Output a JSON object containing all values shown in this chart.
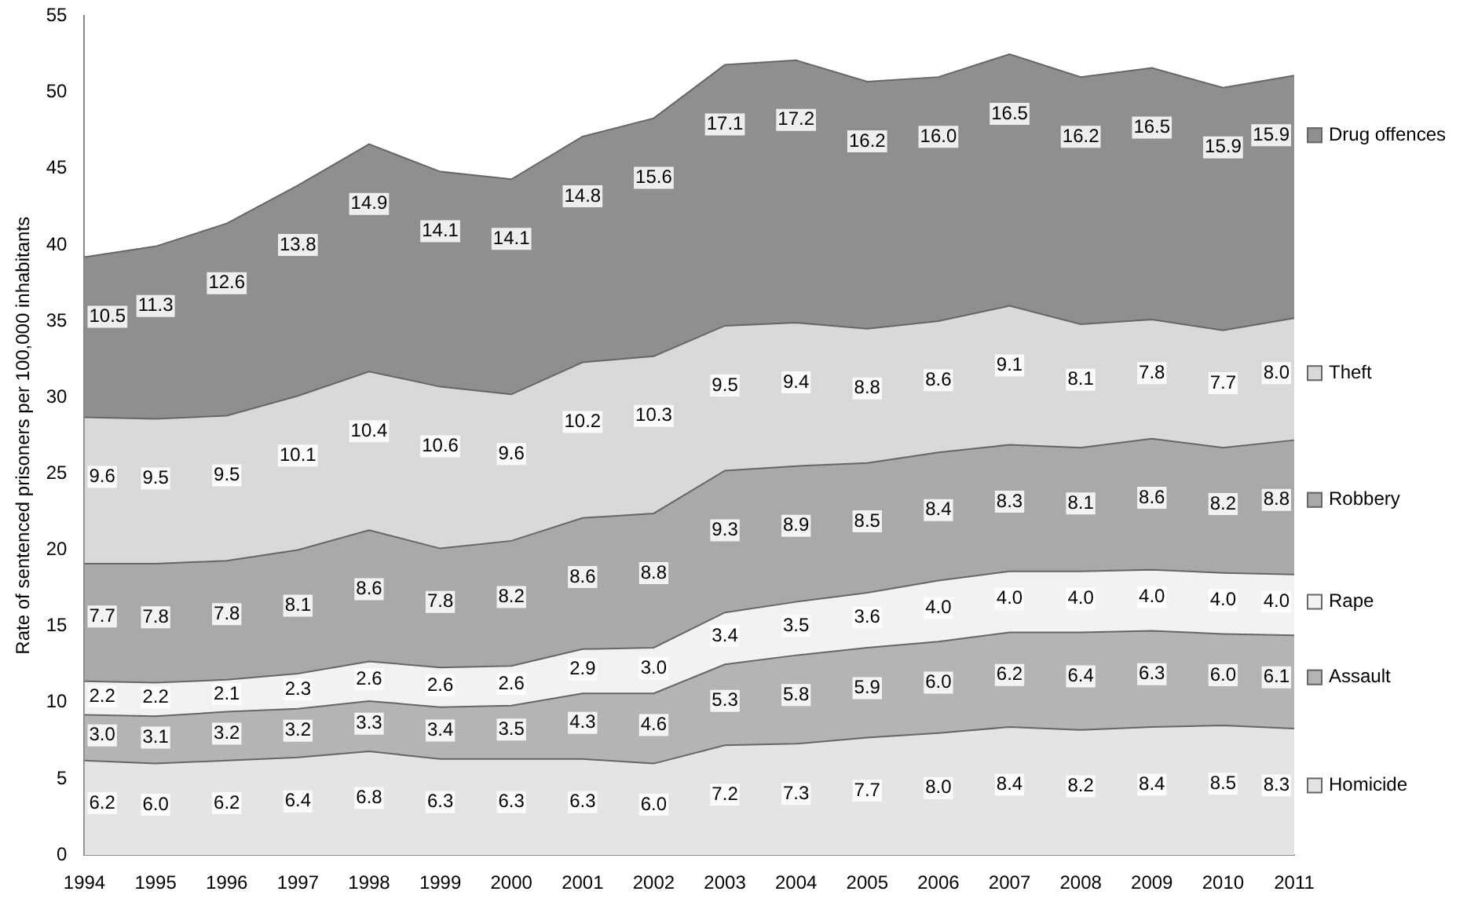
{
  "chart_data": {
    "type": "area",
    "stacked": true,
    "ylabel": "Rate of sentenced prisoners per 100,000 inhabitants",
    "categories": [
      "1994",
      "1995",
      "1996",
      "1997",
      "1998",
      "1999",
      "2000",
      "2001",
      "2002",
      "2003",
      "2004",
      "2005",
      "2006",
      "2007",
      "2008",
      "2009",
      "2010",
      "2011"
    ],
    "series": [
      {
        "name": "Homicide",
        "color": "#e4e4e4",
        "values": [
          6.2,
          6.0,
          6.2,
          6.4,
          6.8,
          6.3,
          6.3,
          6.3,
          6.0,
          7.2,
          7.3,
          7.7,
          8.0,
          8.4,
          8.2,
          8.4,
          8.5,
          8.3
        ],
        "value_labels": [
          "6.2",
          "6.0",
          "6.2",
          "6.4",
          "6.8",
          "6.3",
          "6.3",
          "6.3",
          "6.0",
          "7.2",
          "7.3",
          "7.7",
          "8.0",
          "8.4",
          "8.2",
          "8.4",
          "8.5",
          "8.3"
        ]
      },
      {
        "name": "Assault",
        "color": "#b4b4b4",
        "values": [
          3.0,
          3.1,
          3.2,
          3.2,
          3.3,
          3.4,
          3.5,
          4.3,
          4.6,
          5.3,
          5.8,
          5.9,
          6.0,
          6.2,
          6.4,
          6.3,
          6.0,
          6.1
        ],
        "value_labels": [
          "3.0",
          "3.1",
          "3.2",
          "3.2",
          "3.3",
          "3.4",
          "3.5",
          "4.3",
          "4.6",
          "5.3",
          "5.8",
          "5.9",
          "6.0",
          "6.2",
          "6.4",
          "6.3",
          "6.0",
          "6.1"
        ]
      },
      {
        "name": "Rape",
        "color": "#f2f2f2",
        "values": [
          2.2,
          2.2,
          2.1,
          2.3,
          2.6,
          2.6,
          2.6,
          2.9,
          3.0,
          3.4,
          3.5,
          3.6,
          4.0,
          4.0,
          4.0,
          4.0,
          4.0,
          4.0
        ],
        "value_labels": [
          "2.2",
          "2.2",
          "2.1",
          "2.3",
          "2.6",
          "2.6",
          "2.6",
          "2.9",
          "3.0",
          "3.4",
          "3.5",
          "3.6",
          "4.0",
          "4.0",
          "4.0",
          "4.0",
          "4.0",
          "4.0"
        ]
      },
      {
        "name": "Robbery",
        "color": "#a9a9a9",
        "values": [
          7.7,
          7.8,
          7.8,
          8.1,
          8.6,
          7.8,
          8.2,
          8.6,
          8.8,
          9.3,
          8.9,
          8.5,
          8.4,
          8.3,
          8.1,
          8.6,
          8.2,
          8.8
        ],
        "value_labels": [
          "7.7",
          "7.8",
          "7.8",
          "8.1",
          "8.6",
          "7.8",
          "8.2",
          "8.6",
          "8.8",
          "9.3",
          "8.9",
          "8.5",
          "8.4",
          "8.3",
          "8.1",
          "8.6",
          "8.2",
          "8.8"
        ]
      },
      {
        "name": "Theft",
        "color": "#d9d9d9",
        "values": [
          9.6,
          9.5,
          9.5,
          10.1,
          10.4,
          10.6,
          9.6,
          10.2,
          10.3,
          9.5,
          9.4,
          8.8,
          8.6,
          9.1,
          8.1,
          7.8,
          7.7,
          8.0
        ],
        "value_labels": [
          "9.6",
          "9.5",
          "9.5",
          "10.1",
          "10.4",
          "10.6",
          "9.6",
          "10.2",
          "10.3",
          "9.5",
          "9.4",
          "8.8",
          "8.6",
          "9.1",
          "8.1",
          "7.8",
          "7.7",
          "8.0"
        ]
      },
      {
        "name": "Drug offences",
        "color": "#8f8f8f",
        "values": [
          10.5,
          11.3,
          12.6,
          13.8,
          14.9,
          14.1,
          14.1,
          14.8,
          15.6,
          17.1,
          17.2,
          16.2,
          16.0,
          16.5,
          16.2,
          16.5,
          15.9,
          15.9
        ],
        "value_labels": [
          "10.5",
          "11.3",
          "12.6",
          "13.8",
          "14.9",
          "14.1",
          "14.1",
          "14.8",
          "15.6",
          "17.1",
          "17.2",
          "16.2",
          "16.0",
          "16.5",
          "16.2",
          "16.5",
          "15.9",
          "15.9"
        ]
      }
    ],
    "ylim": [
      0,
      55
    ],
    "yticks": [
      0,
      5,
      10,
      15,
      20,
      25,
      30,
      35,
      40,
      45,
      50,
      55
    ],
    "grid": false,
    "legend": "right"
  }
}
